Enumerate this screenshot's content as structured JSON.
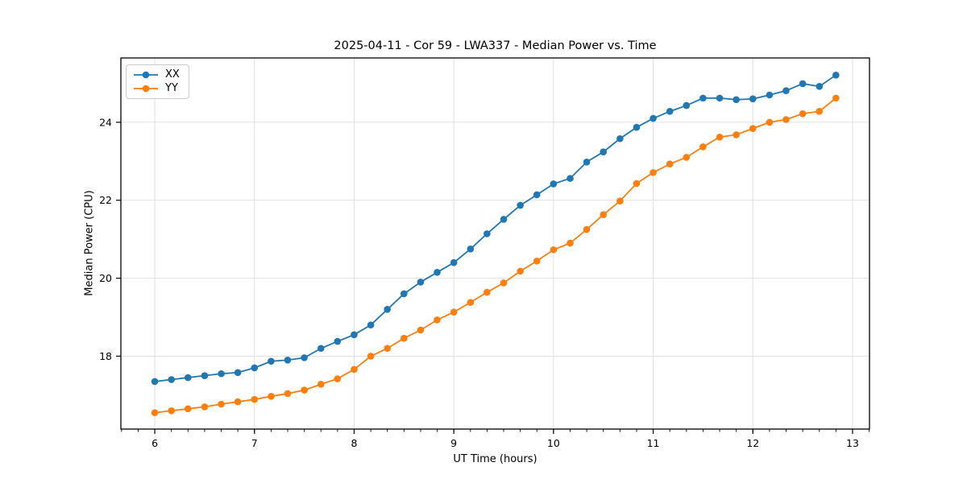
{
  "figure": {
    "background": "#ffffff"
  },
  "chart_data": {
    "type": "line",
    "title": "2025-04-11 - Cor 59 - LWA337 - Median Power vs. Time",
    "xlabel": "UT Time (hours)",
    "ylabel": "Median Power (CPU)",
    "xlim": [
      5.66,
      13.17
    ],
    "ylim": [
      16.13,
      25.65
    ],
    "xticks": {
      "values": [
        6,
        7,
        8,
        9,
        10,
        11,
        12,
        13
      ],
      "labels": [
        "6",
        "7",
        "8",
        "9",
        "10",
        "11",
        "12",
        "13"
      ]
    },
    "yticks": {
      "values": [
        18,
        20,
        22,
        24
      ],
      "labels": [
        "18",
        "20",
        "22",
        "24"
      ]
    },
    "minor_xtick_step": 0.16667,
    "grid": true,
    "grid_color": "#e0e0e0",
    "spine_color": "#000000",
    "tick_color": "#000000",
    "legend": {
      "position": "upper left"
    },
    "marker": {
      "shape": "circle",
      "radius": 4.3
    },
    "line_width": 1.8,
    "x": [
      6.0,
      6.167,
      6.333,
      6.5,
      6.667,
      6.833,
      7.0,
      7.167,
      7.333,
      7.5,
      7.667,
      7.833,
      8.0,
      8.167,
      8.333,
      8.5,
      8.667,
      8.833,
      9.0,
      9.167,
      9.333,
      9.5,
      9.667,
      9.833,
      10.0,
      10.167,
      10.333,
      10.5,
      10.667,
      10.833,
      11.0,
      11.167,
      11.333,
      11.5,
      11.667,
      11.833,
      12.0,
      12.167,
      12.333,
      12.5,
      12.667,
      12.833
    ],
    "series": [
      {
        "name": "XX",
        "color": "#1f77b4",
        "values": [
          17.35,
          17.4,
          17.45,
          17.5,
          17.55,
          17.58,
          17.7,
          17.87,
          17.9,
          17.96,
          18.2,
          18.38,
          18.55,
          18.8,
          19.2,
          19.6,
          19.9,
          20.15,
          20.4,
          20.75,
          21.14,
          21.51,
          21.87,
          22.14,
          22.42,
          22.56,
          22.98,
          23.24,
          23.58,
          23.87,
          24.1,
          24.28,
          24.43,
          24.62,
          24.62,
          24.58,
          24.6,
          24.7,
          24.81,
          24.99,
          24.92,
          25.21
        ]
      },
      {
        "name": "YY",
        "color": "#ff7f0e",
        "values": [
          16.55,
          16.6,
          16.65,
          16.7,
          16.77,
          16.83,
          16.89,
          16.97,
          17.04,
          17.13,
          17.28,
          17.42,
          17.66,
          18.0,
          18.2,
          18.46,
          18.67,
          18.93,
          19.13,
          19.38,
          19.64,
          19.88,
          20.18,
          20.44,
          20.73,
          20.9,
          21.25,
          21.63,
          21.98,
          22.43,
          22.71,
          22.93,
          23.1,
          23.37,
          23.62,
          23.68,
          23.84,
          24.0,
          24.07,
          24.22,
          24.28,
          24.62
        ]
      }
    ]
  }
}
